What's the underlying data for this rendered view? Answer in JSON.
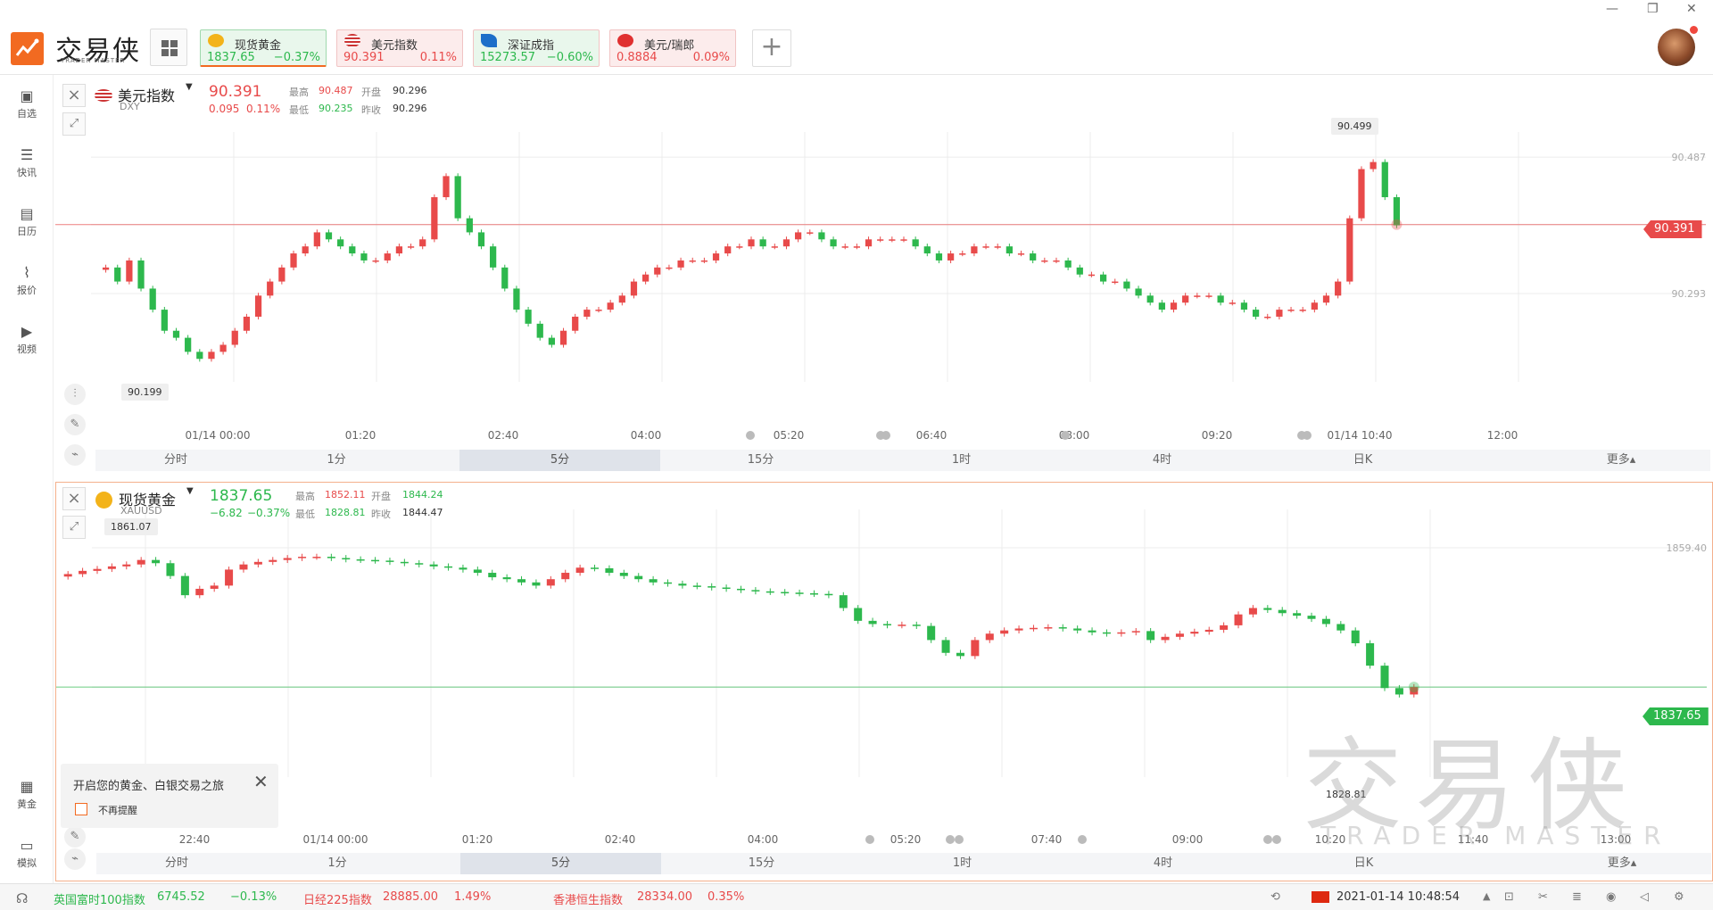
{
  "app": {
    "logo_cn": "交易侠",
    "logo_en": "TRADER MASTER",
    "grid_icon": "grid-icon",
    "add_label": "+"
  },
  "quotes": [
    {
      "name": "现货黄金",
      "price": "1837.65",
      "pct": "−0.37%",
      "color": "#2db84d",
      "bg": "#e9f7ec",
      "active": true
    },
    {
      "name": "美元指数",
      "price": "90.391",
      "pct": "0.11%",
      "color": "#e84a4a",
      "bg": "#fcecec"
    },
    {
      "name": "深证成指",
      "price": "15273.57",
      "pct": "−0.60%",
      "color": "#2db84d",
      "bg": "#e9f7ec"
    },
    {
      "name": "美元/瑞郎",
      "price": "0.8884",
      "pct": "0.09%",
      "color": "#e84a4a",
      "bg": "#fcecec"
    }
  ],
  "window": {
    "minimize": "—",
    "restore": "❐",
    "close": "✕"
  },
  "sidebar": [
    {
      "label": "自选",
      "icon": "bookmark-icon"
    },
    {
      "label": "快讯",
      "icon": "news-icon"
    },
    {
      "label": "日历",
      "icon": "calendar-icon"
    },
    {
      "label": "报价",
      "icon": "quote-icon"
    },
    {
      "label": "视频",
      "icon": "video-icon"
    },
    {
      "label": "黄金",
      "icon": "gold-icon"
    },
    {
      "label": "模拟",
      "icon": "simulate-icon"
    }
  ],
  "panel1": {
    "name": "美元指数",
    "code": "DXY",
    "price": "90.391",
    "change": "0.095",
    "pct": "0.11%",
    "high_label": "最高",
    "high": "90.487",
    "open_label": "开盘",
    "open": "90.296",
    "low_label": "最低",
    "low": "90.235",
    "prev_label": "昨收",
    "prev": "90.296",
    "price_tag": "90.391",
    "hi_callout": "90.499",
    "lo_callout": "90.199",
    "y_labels": [
      "90.487",
      "90.293"
    ],
    "x_labels": [
      "01/14 00:00",
      "01:20",
      "02:40",
      "04:00",
      "05:20",
      "06:40",
      "08:00",
      "09:20",
      "01/14 10:40",
      "12:00"
    ]
  },
  "panel2": {
    "name": "现货黄金",
    "code": "XAUUSD",
    "price": "1837.65",
    "change": "−6.82",
    "pct": "−0.37%",
    "high_label": "最高",
    "high": "1852.11",
    "open_label": "开盘",
    "open": "1844.24",
    "low_label": "最低",
    "low": "1828.81",
    "prev_label": "昨收",
    "prev": "1844.47",
    "price_tag": "1837.65",
    "hi_callout": "1861.07",
    "lo_callout": "1828.81",
    "y_labels": [
      "1859.40"
    ],
    "x_labels": [
      "22:40",
      "01/14 00:00",
      "01:20",
      "02:40",
      "04:00",
      "05:20",
      "07:40",
      "09:00",
      "10:20",
      "11:40",
      "13:00"
    ]
  },
  "timeframes": [
    "分时",
    "1分",
    "5分",
    "15分",
    "1时",
    "4时",
    "日K",
    "更多▴"
  ],
  "popup": {
    "title": "开启您的黄金、白银交易之旅",
    "checkbox": "不再提醒"
  },
  "watermark": {
    "cn": "交易侠",
    "en": "TRADER MASTER"
  },
  "status": {
    "items": [
      {
        "name": "英国富时100指数",
        "value": "6745.52",
        "pct": "−0.13%",
        "color": "#2db84d"
      },
      {
        "name": "日经225指数",
        "value": "28885.00",
        "pct": "1.49%",
        "color": "#e84a4a"
      },
      {
        "name": "香港恒生指数",
        "value": "28334.00",
        "pct": "0.35%",
        "color": "#e84a4a"
      }
    ],
    "datetime": "2021-01-14 10:48:54"
  },
  "colors": {
    "up": "#e84a4a",
    "down": "#2db84d",
    "accent": "#f26a21"
  },
  "chart_data": [
    {
      "type": "candlestick",
      "title": "美元指数",
      "ylim": [
        90.18,
        90.51
      ],
      "ref_line": 90.391,
      "closes": [
        90.33,
        90.31,
        90.34,
        90.3,
        90.27,
        90.24,
        90.23,
        90.21,
        90.2,
        90.21,
        90.22,
        90.24,
        90.26,
        90.29,
        90.31,
        90.33,
        90.35,
        90.36,
        90.38,
        90.37,
        90.36,
        90.35,
        90.34,
        90.34,
        90.35,
        90.36,
        90.36,
        90.37,
        90.43,
        90.46,
        90.4,
        90.38,
        90.36,
        90.33,
        90.3,
        90.27,
        90.25,
        90.23,
        90.22,
        90.24,
        90.26,
        90.27,
        90.27,
        90.28,
        90.29,
        90.31,
        90.32,
        90.33,
        90.33,
        90.34,
        90.34,
        90.34,
        90.35,
        90.36,
        90.36,
        90.37,
        90.36,
        90.36,
        90.37,
        90.38,
        90.38,
        90.37,
        90.36,
        90.36,
        90.36,
        90.37,
        90.37,
        90.37,
        90.37,
        90.36,
        90.35,
        90.34,
        90.35,
        90.35,
        90.36,
        90.36,
        90.36,
        90.35,
        90.35,
        90.34,
        90.34,
        90.34,
        90.33,
        90.32,
        90.32,
        90.31,
        90.31,
        90.3,
        90.29,
        90.28,
        90.27,
        90.28,
        90.29,
        90.29,
        90.29,
        90.28,
        90.28,
        90.27,
        90.26,
        90.26,
        90.27,
        90.27,
        90.27,
        90.28,
        90.29,
        90.31,
        90.4,
        90.47,
        90.48,
        90.43,
        90.39
      ]
    },
    {
      "type": "candlestick",
      "title": "现货黄金",
      "ylim": [
        1825,
        1864
      ],
      "ref_line": 1837.65,
      "closes": [
        1855.3,
        1855.8,
        1856.1,
        1856.5,
        1856.8,
        1857.5,
        1857,
        1855,
        1852,
        1853,
        1853.5,
        1856,
        1856.8,
        1857.2,
        1857.5,
        1857.8,
        1858,
        1858,
        1857.8,
        1857.6,
        1857.5,
        1857.4,
        1857.2,
        1857,
        1856.8,
        1856.5,
        1856.3,
        1856,
        1855.5,
        1854.8,
        1854.5,
        1854,
        1853.5,
        1854.5,
        1855.5,
        1856.3,
        1856.2,
        1855.5,
        1855,
        1854.5,
        1854,
        1853.8,
        1853.5,
        1853.4,
        1853.2,
        1853,
        1852.8,
        1852.6,
        1852.5,
        1852.4,
        1852.3,
        1852.2,
        1852,
        1850,
        1848,
        1847.5,
        1847.3,
        1847.4,
        1847.2,
        1845,
        1843,
        1842.5,
        1845,
        1846,
        1846.5,
        1846.8,
        1846.9,
        1847,
        1846.8,
        1846.5,
        1846.2,
        1846,
        1846.2,
        1846.4,
        1845,
        1845.5,
        1846,
        1846.3,
        1846.6,
        1847.3,
        1849,
        1850,
        1849.7,
        1849.2,
        1848.8,
        1848.3,
        1847.5,
        1846.5,
        1844.5,
        1841,
        1837.5,
        1836.5,
        1837.65
      ]
    }
  ]
}
